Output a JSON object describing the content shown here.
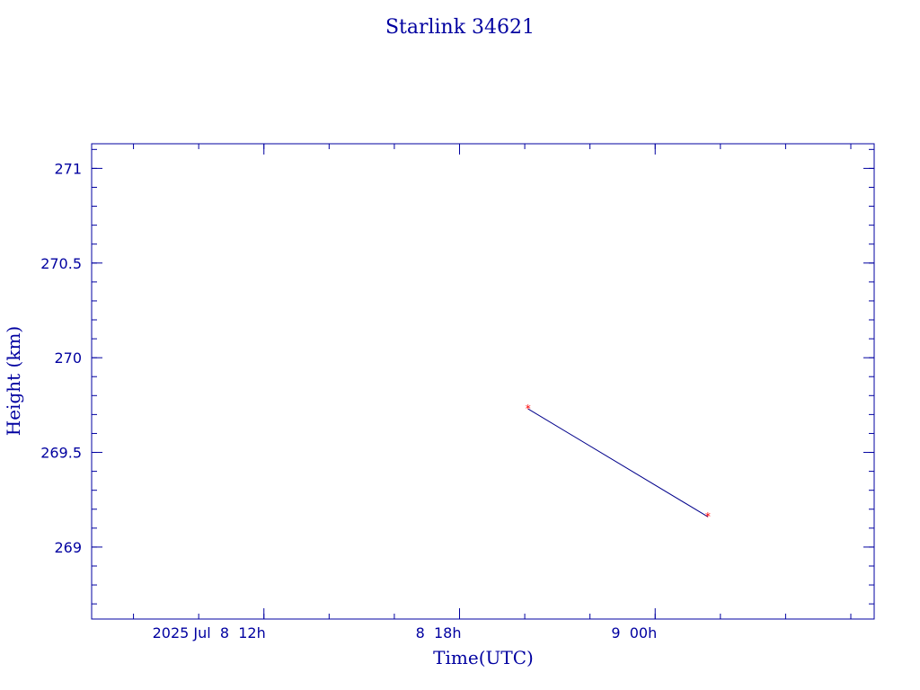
{
  "chart_data": {
    "type": "line",
    "title": "Starlink 34621",
    "xlabel": "Time(UTC)",
    "ylabel": "Height (km)",
    "x_unit": "hours",
    "xlim": [
      "2025-07-08T06:43",
      "2025-07-09T06:43"
    ],
    "ylim": [
      268.62,
      271.13
    ],
    "x_ticks": [
      {
        "value": "2025-07-08T12:00",
        "label": "2025 Jul  8  12h"
      },
      {
        "value": "2025-07-08T18:00",
        "label": "8  18h"
      },
      {
        "value": "2025-07-09T00:00",
        "label": "9  00h"
      }
    ],
    "x_minor_interval_hours": 2,
    "y_ticks": [
      {
        "value": 269,
        "label": "269"
      },
      {
        "value": 269.5,
        "label": "269.5"
      },
      {
        "value": 270,
        "label": "270"
      },
      {
        "value": 270.5,
        "label": "270.5"
      },
      {
        "value": 271,
        "label": "271"
      }
    ],
    "y_minor_interval": 0.1,
    "grid": false,
    "series": [
      {
        "points": [
          {
            "x": "2025-07-08T20:06",
            "y": 269.73
          },
          {
            "x": "2025-07-09T01:37",
            "y": 269.16
          }
        ],
        "line_color": "#00008b",
        "marker_color": "#ff0000"
      }
    ]
  }
}
